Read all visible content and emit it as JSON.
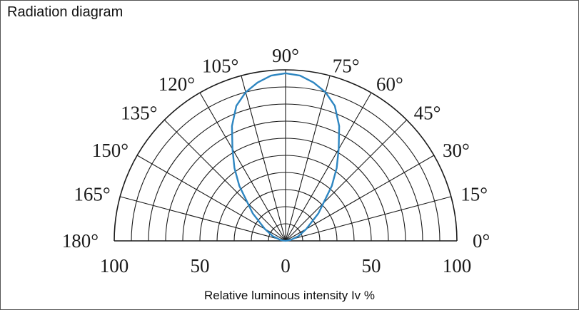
{
  "chart_data": {
    "type": "polar",
    "title": "Radiation diagram",
    "xlabel": "Relative luminous intensity Iv %",
    "radial_range": [
      0,
      100
    ],
    "radial_ticks": [
      "100",
      "50",
      "0",
      "50",
      "100"
    ],
    "angle_labels": [
      "0°",
      "15°",
      "30°",
      "45°",
      "60°",
      "75°",
      "90°",
      "105°",
      "120°",
      "135°",
      "150°",
      "165°",
      "180°"
    ],
    "angle_values": [
      0,
      15,
      30,
      45,
      60,
      75,
      90,
      105,
      120,
      135,
      150,
      165,
      180
    ],
    "grid": true,
    "series_color": "#2e86c1",
    "series": [
      {
        "theta": [
          0,
          10,
          20,
          30,
          40,
          50,
          55,
          60,
          65,
          70,
          75,
          80,
          85,
          90,
          95,
          100,
          105,
          110,
          115,
          120,
          125,
          130,
          140,
          150,
          160,
          170,
          180
        ],
        "r": [
          0,
          3,
          8,
          14,
          25,
          42,
          52,
          62,
          74,
          84,
          90,
          94,
          97,
          98,
          97,
          94,
          90,
          84,
          74,
          62,
          52,
          42,
          25,
          14,
          8,
          3,
          0
        ]
      }
    ]
  }
}
